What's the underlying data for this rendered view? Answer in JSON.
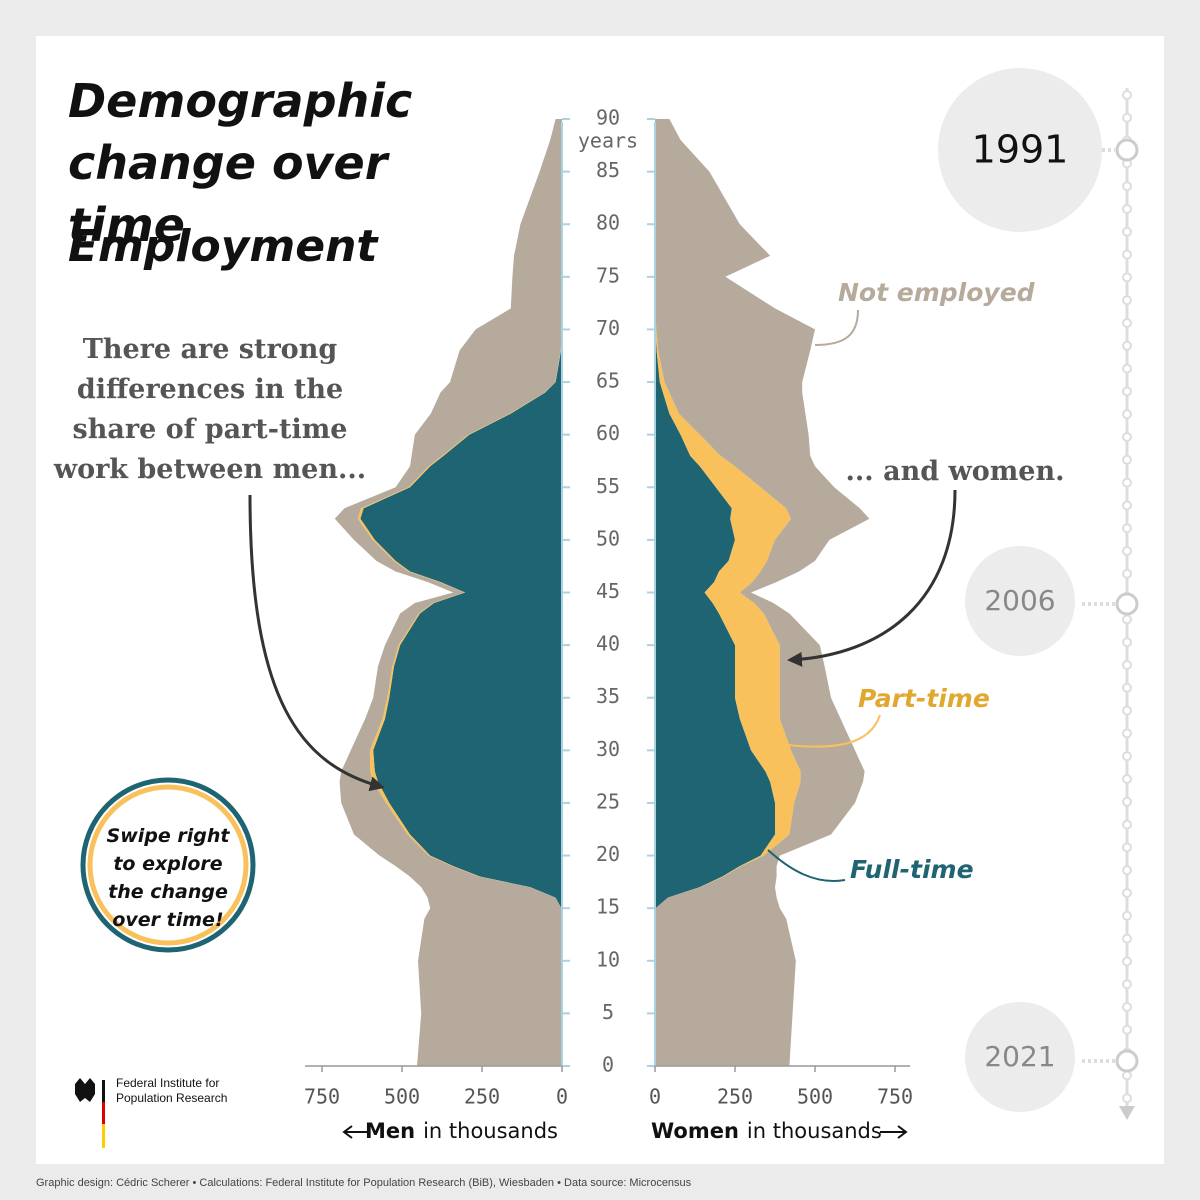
{
  "chart_data": {
    "type": "pyramid",
    "title": "Demographic change over time",
    "subtitle": "Employment",
    "ages": [
      0,
      5,
      10,
      14,
      15,
      16,
      17,
      18,
      19,
      20,
      22,
      25,
      27,
      28,
      30,
      33,
      35,
      38,
      40,
      43,
      44,
      45,
      46,
      47,
      48,
      50,
      52,
      53,
      55,
      57,
      58,
      60,
      62,
      64,
      65,
      68,
      70,
      72,
      75,
      77,
      80,
      85,
      88,
      90
    ],
    "ylim": [
      0,
      90
    ],
    "yticks": [
      0,
      5,
      10,
      15,
      20,
      25,
      30,
      35,
      40,
      45,
      50,
      55,
      60,
      65,
      70,
      75,
      80,
      85,
      90
    ],
    "age_unit": "years",
    "xlim": [
      0,
      750
    ],
    "xticks": [
      0,
      250,
      500,
      750
    ],
    "left_label": "Men",
    "right_label": "Women",
    "x_unit": "in thousands",
    "series": [
      {
        "name": "Not employed",
        "color": "#b5aa9b",
        "men": [
          453,
          440,
          450,
          430,
          410,
          400,
          338,
          216,
          176,
          153,
          167,
          140,
          105,
          90,
          60,
          54,
          44,
          45,
          42,
          58,
          56,
          34,
          36,
          40,
          54,
          58,
          72,
          52,
          40,
          58,
          95,
          166,
          247,
          325,
          329,
          316,
          270,
          160,
          155,
          150,
          130,
          70,
          37,
          20
        ],
        "women": [
          420,
          430,
          440,
          410,
          388,
          340,
          233,
          166,
          110,
          50,
          130,
          190,
          195,
          200,
          200,
          190,
          160,
          140,
          125,
          80,
          60,
          35,
          75,
          120,
          150,
          170,
          245,
          230,
          230,
          250,
          280,
          340,
          395,
          415,
          430,
          475,
          496,
          375,
          220,
          360,
          265,
          170,
          80,
          45
        ]
      },
      {
        "name": "Part-time",
        "color": "#f8c15c",
        "men": [
          0,
          0,
          0,
          0,
          0,
          0,
          2,
          3,
          4,
          5,
          8,
          10,
          15,
          15,
          10,
          8,
          6,
          5,
          5,
          4,
          4,
          3,
          4,
          5,
          6,
          7,
          8,
          8,
          5,
          5,
          5,
          4,
          3,
          2,
          1,
          1,
          0,
          0,
          0,
          0,
          0,
          0,
          0,
          0
        ],
        "women": [
          0,
          0,
          0,
          0,
          0,
          0,
          2,
          4,
          5,
          10,
          45,
          60,
          95,
          110,
          125,
          125,
          140,
          140,
          140,
          140,
          130,
          110,
          120,
          130,
          120,
          125,
          190,
          170,
          140,
          110,
          95,
          60,
          30,
          20,
          15,
          5,
          2,
          0,
          0,
          0,
          0,
          0,
          0,
          0
        ]
      },
      {
        "name": "Full-time",
        "color": "#1f6472",
        "men": [
          0,
          0,
          0,
          0,
          2,
          20,
          100,
          256,
          340,
          412,
          475,
          540,
          575,
          585,
          590,
          553,
          540,
          525,
          506,
          444,
          400,
          303,
          380,
          475,
          520,
          585,
          630,
          620,
          475,
          412,
          370,
          290,
          160,
          53,
          20,
          3,
          0,
          0,
          0,
          0,
          0,
          0,
          0,
          0
        ],
        "women": [
          0,
          0,
          0,
          0,
          2,
          40,
          140,
          210,
          265,
          330,
          375,
          375,
          360,
          345,
          300,
          265,
          250,
          250,
          250,
          200,
          180,
          155,
          185,
          200,
          230,
          250,
          235,
          240,
          190,
          140,
          110,
          80,
          45,
          25,
          15,
          5,
          2,
          0,
          0,
          0,
          0,
          0,
          0,
          0
        ]
      }
    ],
    "annotations": [
      "There are strong differences in the share of part-time work between men...",
      "... and women."
    ],
    "timeline": [
      1991,
      2006,
      2021
    ],
    "call_to_action": "Swipe right to explore the change over time!"
  },
  "logo": "Federal Institute for Population Research",
  "footer": "Graphic design: Cédric Scherer • Calculations: Federal Institute for Population Research (BiB), Wiesbaden • Data source: Microcensus"
}
